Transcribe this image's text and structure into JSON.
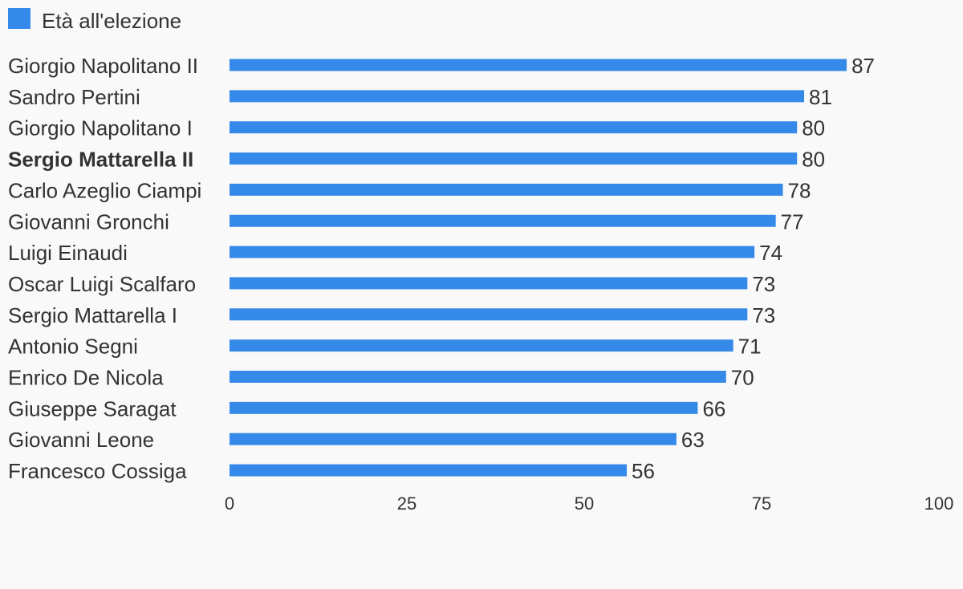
{
  "chart_data": {
    "type": "bar",
    "orientation": "horizontal",
    "categories": [
      "Giorgio Napolitano II",
      "Sandro Pertini",
      "Giorgio Napolitano I",
      "Sergio Mattarella II",
      "Carlo Azeglio Ciampi",
      "Giovanni Gronchi",
      "Luigi Einaudi",
      "Oscar Luigi Scalfaro",
      "Sergio Mattarella I",
      "Antonio Segni",
      "Enrico De Nicola",
      "Giuseppe Saragat",
      "Giovanni Leone",
      "Francesco Cossiga"
    ],
    "bold_categories": [
      "Sergio Mattarella II"
    ],
    "series": [
      {
        "name": "Età all'elezione",
        "values": [
          87,
          81,
          80,
          80,
          78,
          77,
          74,
          73,
          73,
          71,
          70,
          66,
          63,
          56
        ]
      }
    ],
    "value_labels": [
      "87",
      "81",
      "80",
      "80",
      "78",
      "77",
      "74",
      "73",
      "73",
      "71",
      "70",
      "66",
      "63",
      "56"
    ],
    "xlim": [
      0,
      100
    ],
    "ticks": [
      0,
      25,
      50,
      75,
      100
    ],
    "tick_labels": [
      "0",
      "25",
      "50",
      "75",
      "100"
    ],
    "grid": false,
    "legend_position": "top-left",
    "title": "",
    "xlabel": "",
    "ylabel": "",
    "colors": {
      "bar": "#3589e8",
      "text": "#333333",
      "background": "#f9f9f9"
    }
  }
}
